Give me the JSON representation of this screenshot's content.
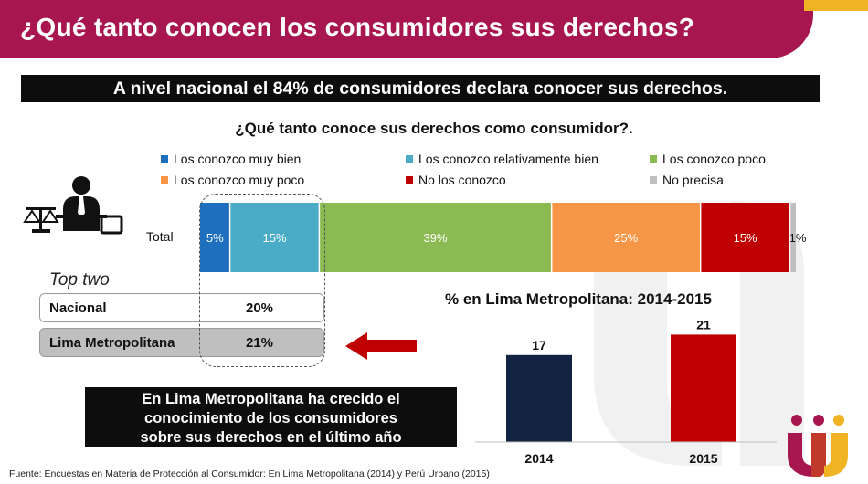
{
  "header": {
    "title": "¿Qué tanto conocen los consumidores sus derechos?"
  },
  "banner": {
    "text": "A nivel nacional el 84% de consumidores declara conocer sus derechos."
  },
  "question": "¿Qué tanto conoce sus derechos como consumidor?.",
  "colors": {
    "header": "#a8164f",
    "accent": "#f0b323"
  },
  "chart_data": [
    {
      "type": "bar",
      "orientation": "horizontal-stacked-100",
      "title": "¿Qué tanto conoce sus derechos como consumidor?.",
      "categories": [
        "Total"
      ],
      "series": [
        {
          "name": "Los conozco muy bien",
          "values": [
            5
          ],
          "label": "5%",
          "color": "#1f6fbf"
        },
        {
          "name": "Los conozco relativamente bien",
          "values": [
            15
          ],
          "label": "15%",
          "color": "#4aacc6"
        },
        {
          "name": "Los conozco poco",
          "values": [
            39
          ],
          "label": "39%",
          "color": "#8cba52"
        },
        {
          "name": "Los conozco muy poco",
          "values": [
            25
          ],
          "label": "25%",
          "color": "#f79646"
        },
        {
          "name": "No los conozco",
          "values": [
            15
          ],
          "label": "15%",
          "color": "#c00000"
        },
        {
          "name": "No precisa",
          "values": [
            1
          ],
          "label": "1%",
          "color": "#bfbfbf"
        }
      ],
      "xlim": [
        0,
        100
      ]
    },
    {
      "type": "bar",
      "title": "% en Lima Metropolitana: 2014-2015",
      "categories": [
        "2014",
        "2015"
      ],
      "values": [
        17,
        21
      ],
      "colors": [
        "#112340",
        "#c00000"
      ],
      "ylim": [
        0,
        25
      ]
    }
  ],
  "legend": [
    {
      "label": "Los conozco muy bien",
      "color": "#1f6fbf"
    },
    {
      "label": "Los conozco relativamente bien",
      "color": "#4aacc6"
    },
    {
      "label": "Los conozco poco",
      "color": "#8cba52"
    },
    {
      "label": "Los conozco muy poco",
      "color": "#f79646"
    },
    {
      "label": "No los conozco",
      "color": "#c00000"
    },
    {
      "label": "No precisa",
      "color": "#bfbfbf"
    }
  ],
  "total_label": "Total",
  "top_two": {
    "title": "Top two",
    "rows": [
      {
        "label": "Nacional",
        "value": "20%"
      },
      {
        "label": "Lima Metropolitana",
        "value": "21%"
      }
    ]
  },
  "note": {
    "lines": [
      "En Lima Metropolitana ha crecido el",
      "conocimiento de los consumidores",
      "sobre sus derechos en el último año"
    ]
  },
  "footer": "Fuente: Encuestas en Materia de Protección al Consumidor: En Lima Metropolitana (2014) y Perú Urbano (2015)"
}
